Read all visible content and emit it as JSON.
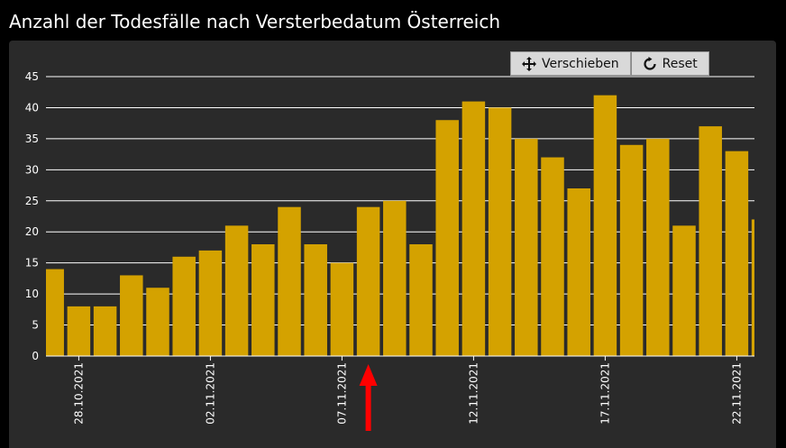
{
  "page": {
    "title": "Anzahl der Todesfälle nach Versterbedatum Österreich"
  },
  "toolbar": {
    "pan_label": "Verschieben",
    "reset_label": "Reset"
  },
  "chart_data": {
    "type": "bar",
    "title": "Anzahl der Todesfälle nach Versterbedatum Österreich",
    "categories": [
      "27.10.2021",
      "28.10.2021",
      "29.10.2021",
      "30.10.2021",
      "31.10.2021",
      "01.11.2021",
      "02.11.2021",
      "03.11.2021",
      "04.11.2021",
      "05.11.2021",
      "06.11.2021",
      "07.11.2021",
      "08.11.2021",
      "09.11.2021",
      "10.11.2021",
      "11.11.2021",
      "12.11.2021",
      "13.11.2021",
      "14.11.2021",
      "15.11.2021",
      "16.11.2021",
      "17.11.2021",
      "18.11.2021",
      "19.11.2021",
      "20.11.2021",
      "21.11.2021",
      "22.11.2021",
      "23.11.2021"
    ],
    "values": [
      14,
      8,
      8,
      13,
      11,
      16,
      17,
      21,
      18,
      24,
      18,
      15,
      24,
      25,
      18,
      38,
      41,
      40,
      35,
      32,
      27,
      42,
      34,
      35,
      21,
      37,
      33,
      22
    ],
    "x_tick_labels": [
      "28.10.2021",
      "02.11.2021",
      "07.11.2021",
      "12.11.2021",
      "17.11.2021",
      "22.11.2021"
    ],
    "y_ticks": [
      0,
      5,
      10,
      15,
      20,
      25,
      30,
      35,
      40,
      45
    ],
    "ylim": [
      0,
      45
    ],
    "xlabel": "",
    "ylabel": "",
    "grid": true,
    "colors": {
      "bar": "#d4a200",
      "grid": "#ffffff",
      "axis_text": "#ffffff",
      "arrow": "#ff0000"
    },
    "annotation": {
      "type": "arrow",
      "points_to": "08.11.2021"
    }
  }
}
